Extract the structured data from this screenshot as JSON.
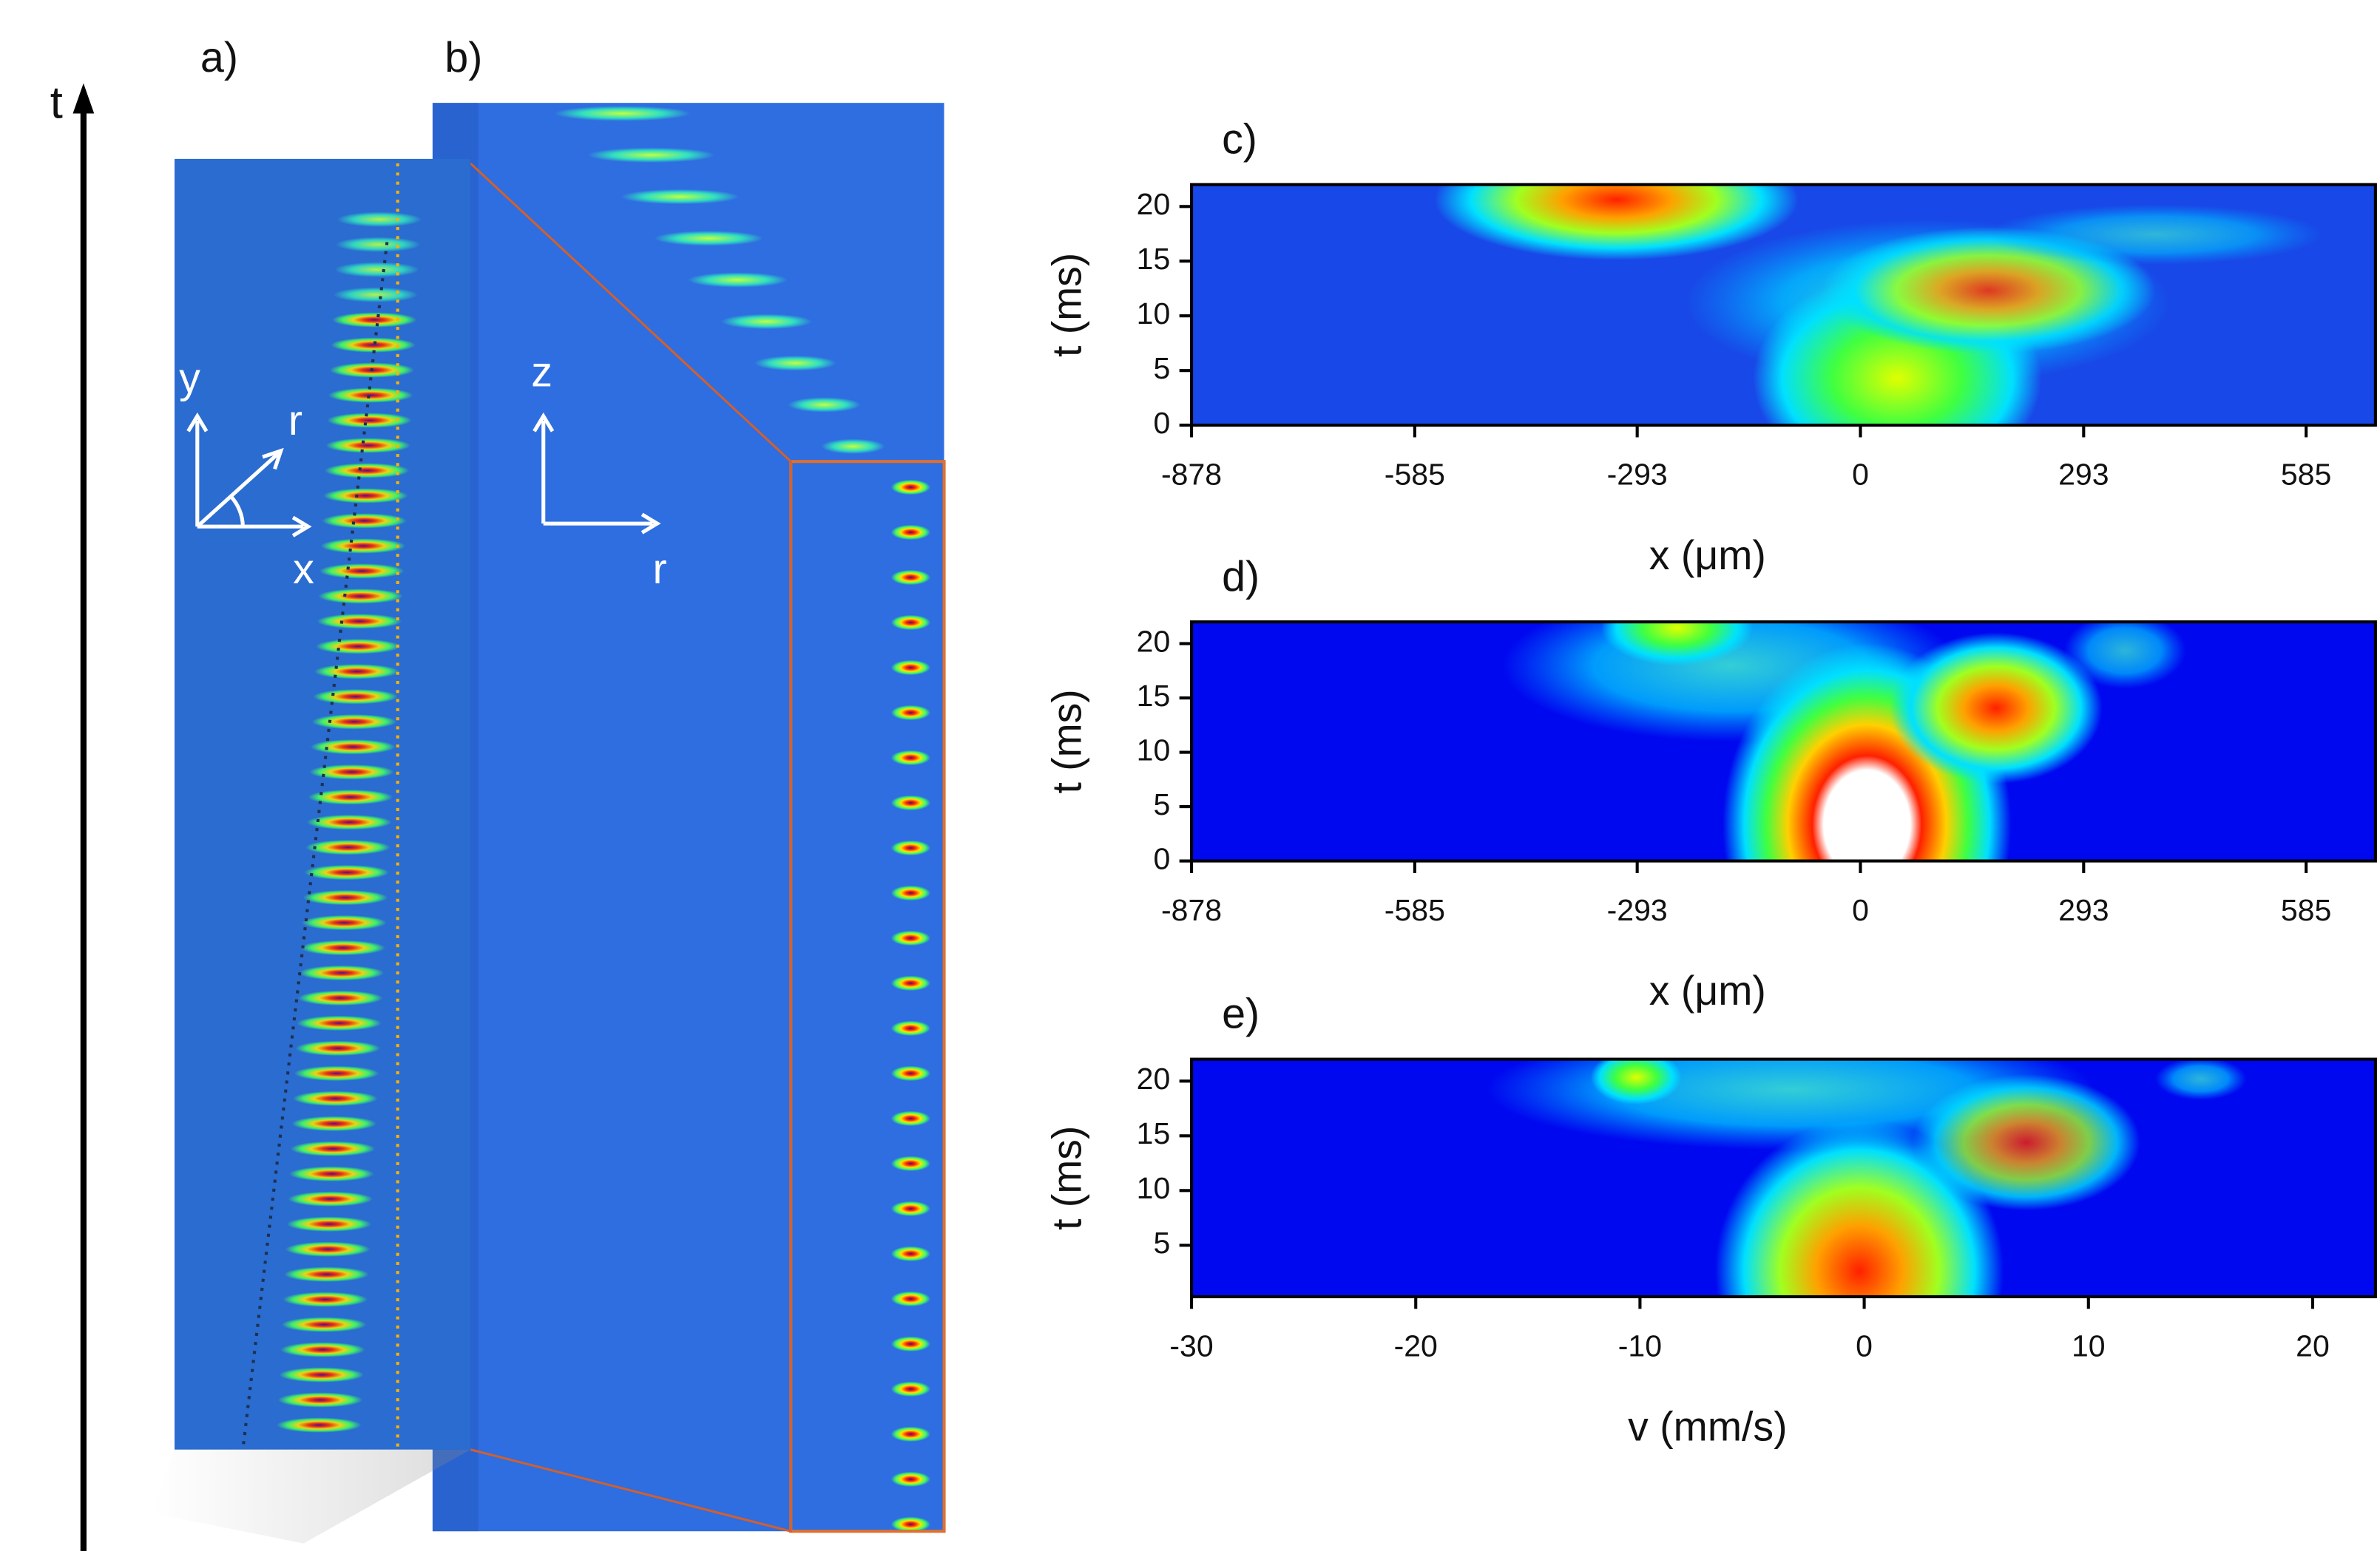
{
  "figure": {
    "panel_a": "a)",
    "panel_b": "b)",
    "time_axis": "t",
    "a_axis_y": "y",
    "a_axis_r": "r",
    "a_axis_x": "x",
    "b_axis_z": "z",
    "b_axis_r": "r"
  },
  "chart_data": [
    {
      "type": "heatmap",
      "panel_label": "c)",
      "xlabel": "x (μm)",
      "ylabel": "t (ms)",
      "xlim": [
        -878,
        676
      ],
      "ylim": [
        0,
        22
      ],
      "xticks": [
        -878,
        -585,
        -293,
        0,
        293,
        585
      ],
      "yticks": [
        0,
        5,
        10,
        15,
        20
      ]
    },
    {
      "type": "heatmap",
      "panel_label": "d)",
      "xlabel": "x (μm)",
      "ylabel": "t (ms)",
      "xlim": [
        -878,
        676
      ],
      "ylim": [
        0,
        22
      ],
      "xticks": [
        -878,
        -585,
        -293,
        0,
        293,
        585
      ],
      "yticks": [
        0,
        5,
        10,
        15,
        20
      ]
    },
    {
      "type": "heatmap",
      "panel_label": "e)",
      "xlabel": "v (mm/s)",
      "ylabel": "t (ms)",
      "xlim": [
        -30,
        22.8
      ],
      "ylim": [
        0.3,
        22
      ],
      "xticks": [
        -30,
        -20,
        -10,
        0,
        10,
        20
      ],
      "yticks": [
        5,
        10,
        15,
        20
      ]
    }
  ]
}
